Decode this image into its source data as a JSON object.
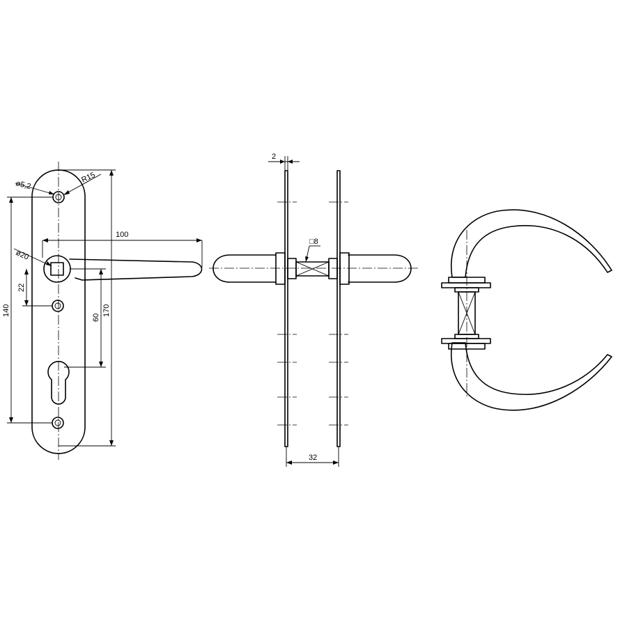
{
  "dimensions": {
    "hole_diameter": "ø5,2",
    "plate_radius": "R15",
    "lever_length": "100",
    "rose_diameter": "ø20",
    "spindle_offset": "22",
    "plate_length": "140",
    "cylinder_offset": "60",
    "total_length": "170",
    "plate_thickness": "2",
    "spindle_square": "□8",
    "door_thickness": "32"
  }
}
